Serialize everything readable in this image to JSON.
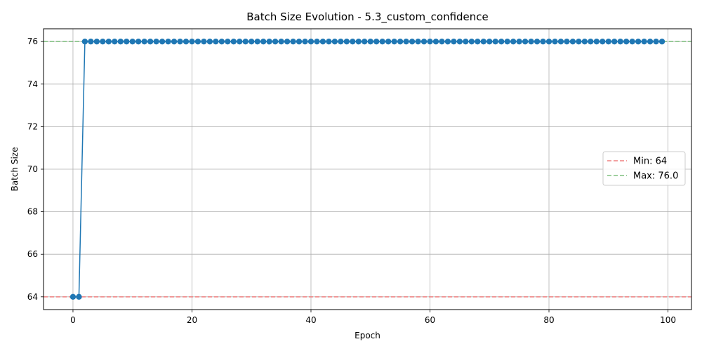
{
  "chart_data": {
    "type": "line",
    "title": "Batch Size Evolution - 5.3_custom_confidence",
    "xlabel": "Epoch",
    "ylabel": "Batch Size",
    "xlim": [
      -4.95,
      103.95
    ],
    "ylim": [
      63.4,
      76.6
    ],
    "xticks": [
      0,
      20,
      40,
      60,
      80,
      100
    ],
    "yticks": [
      64,
      66,
      68,
      70,
      72,
      74,
      76
    ],
    "grid": true,
    "legend_position": "center-right",
    "series": [
      {
        "color": "#1f77b4",
        "marker": "circle",
        "x_start": 0,
        "x_end": 99,
        "values": [
          64,
          64,
          76,
          76,
          76,
          76,
          76,
          76,
          76,
          76,
          76,
          76,
          76,
          76,
          76,
          76,
          76,
          76,
          76,
          76,
          76,
          76,
          76,
          76,
          76,
          76,
          76,
          76,
          76,
          76,
          76,
          76,
          76,
          76,
          76,
          76,
          76,
          76,
          76,
          76,
          76,
          76,
          76,
          76,
          76,
          76,
          76,
          76,
          76,
          76,
          76,
          76,
          76,
          76,
          76,
          76,
          76,
          76,
          76,
          76,
          76,
          76,
          76,
          76,
          76,
          76,
          76,
          76,
          76,
          76,
          76,
          76,
          76,
          76,
          76,
          76,
          76,
          76,
          76,
          76,
          76,
          76,
          76,
          76,
          76,
          76,
          76,
          76,
          76,
          76,
          76,
          76,
          76,
          76,
          76,
          76,
          76,
          76,
          76,
          76
        ]
      }
    ],
    "reference_lines": [
      {
        "label": "Min: 64",
        "value": 64,
        "color": "#ef8080",
        "style": "dashed"
      },
      {
        "label": "Max: 76.0",
        "value": 76,
        "color": "#7fbf7f",
        "style": "dashed"
      }
    ]
  }
}
